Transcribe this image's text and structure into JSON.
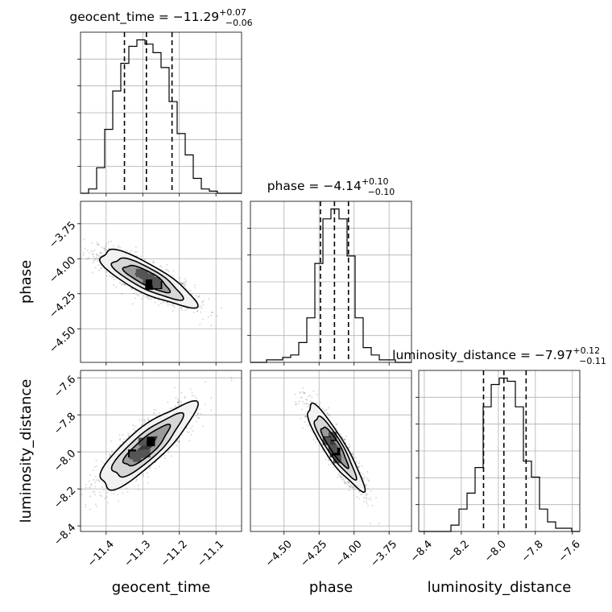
{
  "chart_data": {
    "type": "corner",
    "parameters": [
      "geocent_time",
      "phase",
      "luminosity_distance"
    ],
    "titles": [
      {
        "param": "geocent_time",
        "label": "geocent_time = ",
        "value": "−11.29",
        "plus": "+0.07",
        "minus": "−0.06"
      },
      {
        "param": "phase",
        "label": "phase = ",
        "value": "−4.14",
        "plus": "+0.10",
        "minus": "−0.10"
      },
      {
        "param": "luminosity_distance",
        "label": "luminosity_distance = ",
        "value": "−7.97",
        "plus": "+0.12",
        "minus": "−0.11"
      }
    ],
    "ranges": {
      "geocent_time": [
        -11.47,
        -11.03
      ],
      "phase": [
        -4.74,
        -3.59
      ],
      "luminosity_distance": [
        -8.43,
        -7.56
      ]
    },
    "ticks": {
      "geocent_time": [
        {
          "v": -11.4,
          "t": "−11.4"
        },
        {
          "v": -11.3,
          "t": "−11.3"
        },
        {
          "v": -11.2,
          "t": "−11.2"
        },
        {
          "v": -11.1,
          "t": "−11.1"
        }
      ],
      "phase": [
        {
          "v": -4.5,
          "t": "−4.50"
        },
        {
          "v": -4.25,
          "t": "−4.25"
        },
        {
          "v": -4.0,
          "t": "−4.00"
        },
        {
          "v": -3.75,
          "t": "−3.75"
        }
      ],
      "luminosity_distance": [
        {
          "v": -8.4,
          "t": "−8.4"
        },
        {
          "v": -8.2,
          "t": "−8.2"
        },
        {
          "v": -8.0,
          "t": "−8.0"
        },
        {
          "v": -7.8,
          "t": "−7.8"
        },
        {
          "v": -7.6,
          "t": "−7.6"
        }
      ]
    },
    "quantiles": {
      "geocent_time": [
        -11.35,
        -11.29,
        -11.22
      ],
      "phase": [
        -4.24,
        -4.14,
        -4.04
      ],
      "luminosity_distance": [
        -8.08,
        -7.97,
        -7.85
      ]
    },
    "histograms": {
      "geocent_time": {
        "edges": [
          -11.47,
          -11.448,
          -11.426,
          -11.404,
          -11.382,
          -11.36,
          -11.338,
          -11.316,
          -11.294,
          -11.272,
          -11.25,
          -11.228,
          -11.206,
          -11.184,
          -11.162,
          -11.14,
          -11.118,
          -11.096,
          -11.074,
          -11.052,
          -11.03
        ],
        "counts": [
          0,
          2,
          12,
          30,
          48,
          61,
          69,
          72,
          70,
          66,
          59,
          43,
          28,
          18,
          7,
          2,
          1,
          0,
          0,
          0
        ]
      },
      "phase": {
        "edges": [
          -4.74,
          -4.6825,
          -4.625,
          -4.5675,
          -4.51,
          -4.4525,
          -4.395,
          -4.3375,
          -4.28,
          -4.2225,
          -4.165,
          -4.1075,
          -4.05,
          -3.9925,
          -3.935,
          -3.8775,
          -3.82,
          -3.7625,
          -3.705,
          -3.6475,
          -3.59
        ],
        "counts": [
          0,
          0,
          1,
          1,
          2,
          3,
          8,
          18,
          40,
          58,
          62,
          58,
          43,
          18,
          6,
          3,
          1,
          1,
          0,
          0
        ]
      },
      "luminosity_distance": {
        "edges": [
          -8.43,
          -8.3865,
          -8.343,
          -8.2995,
          -8.256,
          -8.2125,
          -8.169,
          -8.1255,
          -8.082,
          -8.0385,
          -7.995,
          -7.9515,
          -7.908,
          -7.8645,
          -7.821,
          -7.7775,
          -7.734,
          -7.6905,
          -7.647,
          -7.6035,
          -7.56
        ],
        "counts": [
          0,
          0,
          0,
          0,
          2,
          7,
          12,
          20,
          39,
          46,
          48,
          47,
          39,
          22,
          17,
          7,
          3,
          1,
          1,
          0
        ]
      }
    },
    "pairs": [
      {
        "x": "geocent_time",
        "y": "phase",
        "center": [
          -11.29,
          -4.14
        ],
        "sx": 0.065,
        "sy": 0.1,
        "corr": -0.82
      },
      {
        "x": "geocent_time",
        "y": "luminosity_distance",
        "center": [
          -11.29,
          -7.97
        ],
        "sx": 0.065,
        "sy": 0.115,
        "corr": 0.85
      },
      {
        "x": "phase",
        "y": "luminosity_distance",
        "center": [
          -4.14,
          -7.97
        ],
        "sx": 0.1,
        "sy": 0.115,
        "corr": -0.9
      }
    ],
    "grid": true
  }
}
